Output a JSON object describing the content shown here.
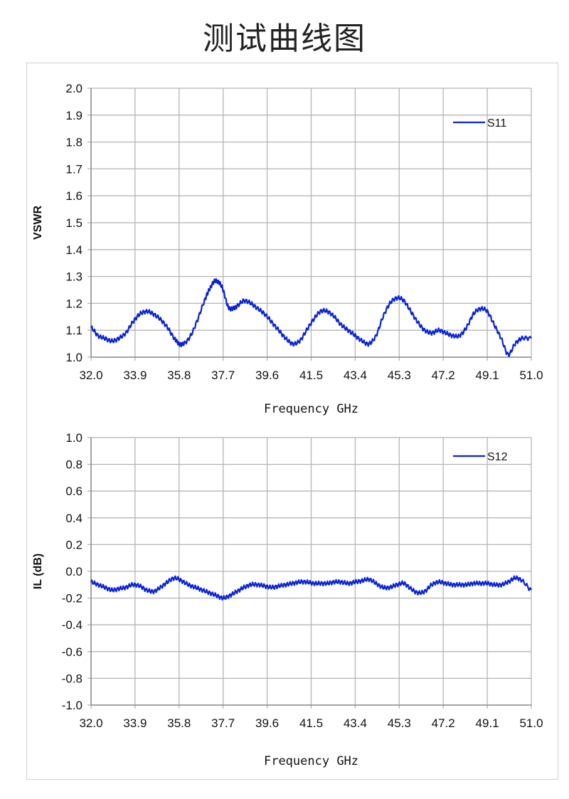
{
  "page": {
    "title": "测试曲线图"
  },
  "colors": {
    "series": "#0a23d8",
    "grid": "#b5b5b5",
    "axis": "#8c8c8c"
  },
  "chart_data": [
    {
      "type": "line",
      "ylabel": "VSWR",
      "xlabel": "Frequency GHz",
      "xlim": [
        32.0,
        51.0
      ],
      "ylim": [
        1.0,
        2.0
      ],
      "xticks": [
        "32.0",
        "33.9",
        "35.8",
        "37.7",
        "39.6",
        "41.5",
        "43.4",
        "45.3",
        "47.2",
        "49.1",
        "51.0"
      ],
      "yticks": [
        "2.0",
        "1.9",
        "1.8",
        "1.7",
        "1.6",
        "1.5",
        "1.4",
        "1.3",
        "1.2",
        "1.1",
        "1.0"
      ],
      "legend": "top-right",
      "grid": true,
      "series": [
        {
          "name": "S11",
          "x": [
            32.0,
            32.3,
            32.6,
            32.9,
            33.2,
            33.5,
            33.8,
            34.1,
            34.4,
            34.7,
            35.0,
            35.3,
            35.6,
            35.8,
            36.0,
            36.3,
            36.6,
            36.9,
            37.1,
            37.3,
            37.5,
            37.7,
            37.9,
            38.1,
            38.3,
            38.6,
            38.9,
            39.2,
            39.5,
            39.8,
            40.1,
            40.4,
            40.7,
            41.0,
            41.3,
            41.6,
            41.9,
            42.2,
            42.5,
            42.8,
            43.1,
            43.4,
            43.7,
            44.0,
            44.3,
            44.6,
            44.9,
            45.2,
            45.5,
            45.8,
            46.1,
            46.4,
            46.7,
            47.0,
            47.3,
            47.6,
            47.9,
            48.2,
            48.5,
            48.8,
            49.1,
            49.4,
            49.7,
            50.0,
            50.3,
            50.6,
            51.0
          ],
          "y": [
            1.11,
            1.08,
            1.07,
            1.06,
            1.07,
            1.09,
            1.13,
            1.16,
            1.17,
            1.16,
            1.14,
            1.11,
            1.07,
            1.05,
            1.05,
            1.08,
            1.14,
            1.21,
            1.25,
            1.28,
            1.28,
            1.25,
            1.19,
            1.18,
            1.19,
            1.21,
            1.2,
            1.18,
            1.16,
            1.13,
            1.1,
            1.07,
            1.05,
            1.06,
            1.1,
            1.14,
            1.17,
            1.17,
            1.15,
            1.12,
            1.1,
            1.08,
            1.06,
            1.05,
            1.08,
            1.15,
            1.2,
            1.22,
            1.21,
            1.17,
            1.13,
            1.1,
            1.09,
            1.1,
            1.09,
            1.08,
            1.08,
            1.11,
            1.16,
            1.18,
            1.17,
            1.12,
            1.07,
            1.01,
            1.05,
            1.07,
            1.07
          ]
        }
      ]
    },
    {
      "type": "line",
      "ylabel": "IL (dB)",
      "xlabel": "Frequency GHz",
      "xlim": [
        32.0,
        51.0
      ],
      "ylim": [
        -1.0,
        1.0
      ],
      "xticks": [
        "32.0",
        "33.9",
        "35.8",
        "37.7",
        "39.6",
        "41.5",
        "43.4",
        "45.3",
        "47.2",
        "49.1",
        "51.0"
      ],
      "yticks": [
        "1.0",
        "0.8",
        "0.6",
        "0.4",
        "0.2",
        "0.0",
        "-0.2",
        "-0.4",
        "-0.6",
        "-0.8",
        "-1.0"
      ],
      "legend": "top-right",
      "grid": true,
      "series": [
        {
          "name": "S12",
          "x": [
            32.0,
            32.3,
            32.6,
            32.9,
            33.2,
            33.5,
            33.8,
            34.1,
            34.4,
            34.7,
            35.0,
            35.3,
            35.6,
            35.9,
            36.2,
            36.5,
            36.8,
            37.1,
            37.4,
            37.7,
            38.0,
            38.3,
            38.6,
            38.9,
            39.2,
            39.5,
            39.8,
            40.1,
            40.4,
            40.7,
            41.0,
            41.3,
            41.6,
            41.9,
            42.2,
            42.5,
            42.8,
            43.1,
            43.4,
            43.7,
            44.0,
            44.3,
            44.6,
            44.9,
            45.2,
            45.5,
            45.8,
            46.1,
            46.4,
            46.7,
            47.0,
            47.3,
            47.6,
            47.9,
            48.2,
            48.5,
            48.8,
            49.1,
            49.4,
            49.7,
            50.0,
            50.3,
            50.6,
            51.0
          ],
          "y": [
            -0.08,
            -0.1,
            -0.12,
            -0.14,
            -0.13,
            -0.12,
            -0.1,
            -0.11,
            -0.14,
            -0.15,
            -0.12,
            -0.08,
            -0.05,
            -0.07,
            -0.1,
            -0.12,
            -0.14,
            -0.16,
            -0.18,
            -0.2,
            -0.18,
            -0.15,
            -0.12,
            -0.1,
            -0.1,
            -0.11,
            -0.12,
            -0.11,
            -0.1,
            -0.09,
            -0.08,
            -0.08,
            -0.09,
            -0.09,
            -0.09,
            -0.08,
            -0.08,
            -0.09,
            -0.08,
            -0.07,
            -0.06,
            -0.09,
            -0.12,
            -0.12,
            -0.1,
            -0.09,
            -0.13,
            -0.16,
            -0.15,
            -0.1,
            -0.08,
            -0.09,
            -0.1,
            -0.1,
            -0.1,
            -0.09,
            -0.09,
            -0.09,
            -0.1,
            -0.1,
            -0.08,
            -0.05,
            -0.07,
            -0.14
          ]
        }
      ]
    }
  ]
}
